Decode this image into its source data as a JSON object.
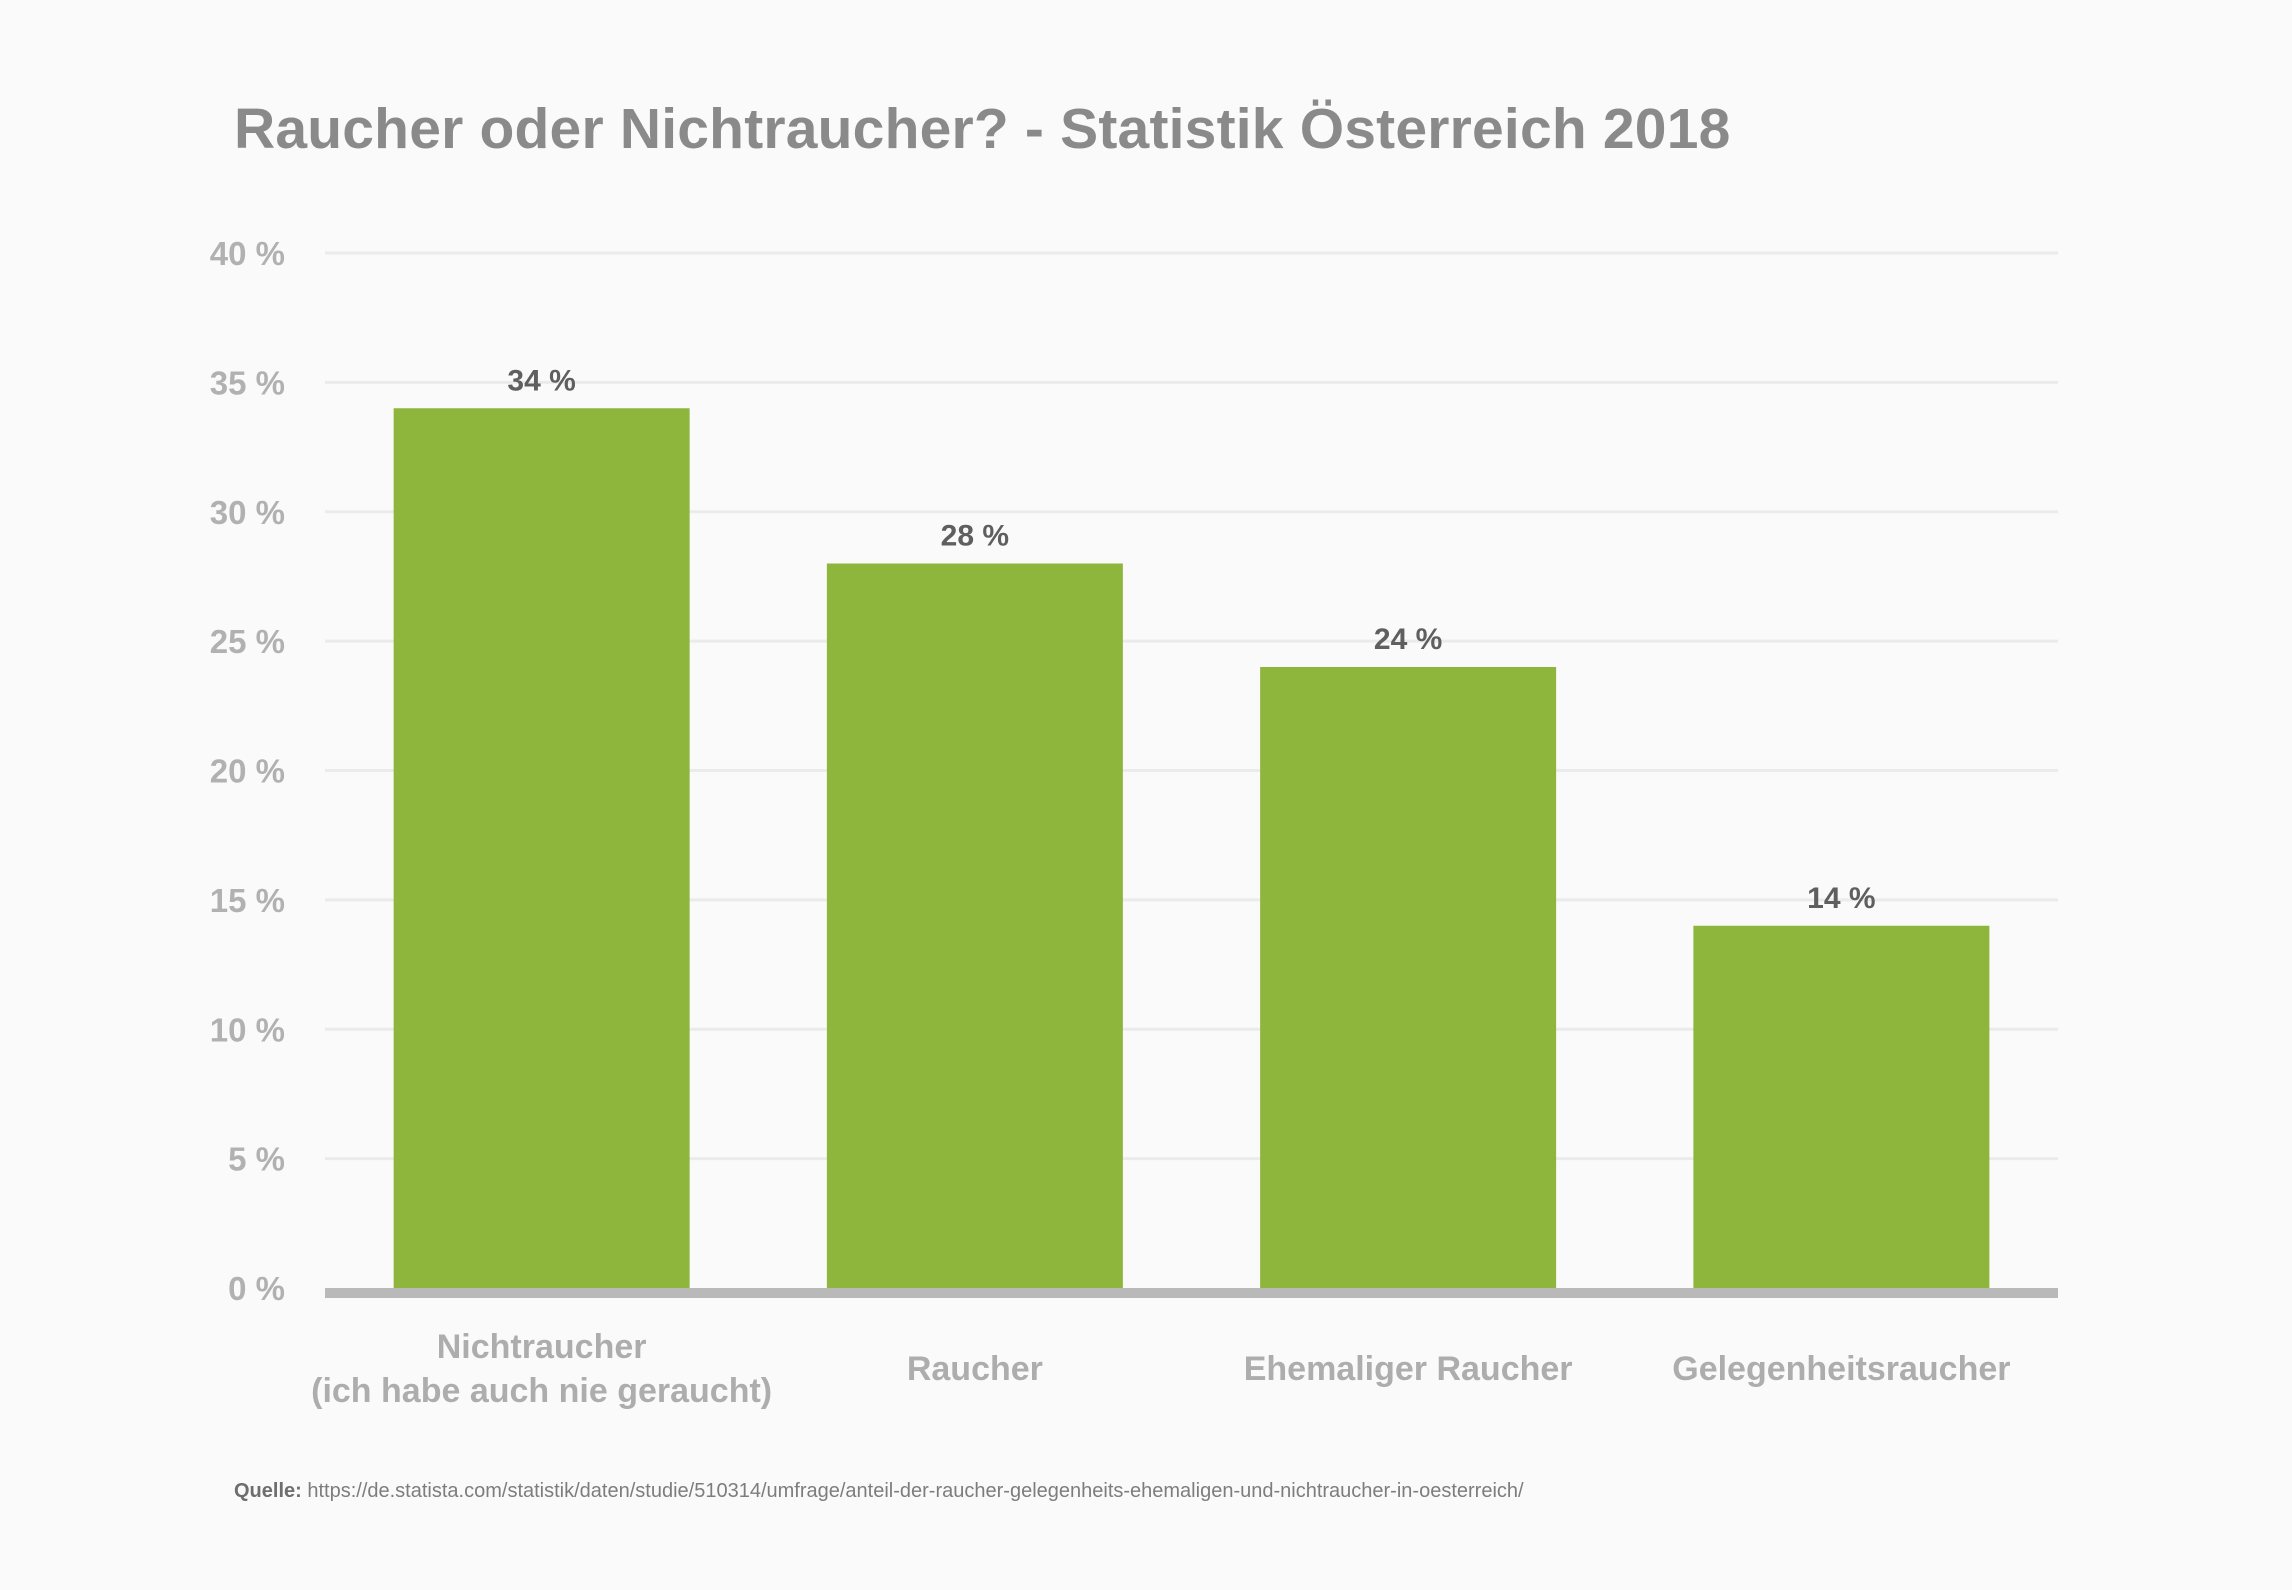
{
  "chart_data": {
    "type": "bar",
    "title": "Raucher oder Nichtraucher? -  Statistik Österreich 2018",
    "categories": [
      [
        "Nichtraucher",
        "(ich habe auch nie geraucht)"
      ],
      [
        "Raucher"
      ],
      [
        "Ehemaliger Raucher"
      ],
      [
        "Gelegenheitsraucher"
      ]
    ],
    "values": [
      34,
      28,
      24,
      14
    ],
    "value_labels": [
      "34 %",
      "28 %",
      "24 %",
      "14 %"
    ],
    "ylim": [
      0,
      40
    ],
    "yticks": [
      0,
      5,
      10,
      15,
      20,
      25,
      30,
      35,
      40
    ],
    "ytick_labels": [
      "0 %",
      "5 %",
      "10 %",
      "15 %",
      "20 %",
      "25 %",
      "30 %",
      "35 %",
      "40 %"
    ],
    "xlabel": "",
    "ylabel": "",
    "grid": true,
    "legend": "none",
    "colors": {
      "bar": "#8eb53c",
      "grid": "#ebebeb",
      "baseline": "#b9b9b9",
      "tick_label": "#b1b1b1",
      "category_label": "#adadad",
      "value_label": "#5f5f5f"
    }
  },
  "source": {
    "label": "Quelle:",
    "url": " https://de.statista.com/statistik/daten/studie/510314/umfrage/anteil-der-raucher-gelegenheits-ehemaligen-und-nichtraucher-in-oesterreich/"
  }
}
